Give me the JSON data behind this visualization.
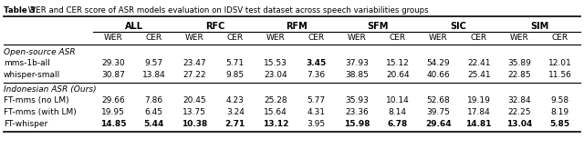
{
  "title_bold": "Table 3.",
  "title_normal": " WER and CER score of ASR models evaluation on IDSV test dataset across speech variabilities groups",
  "col_groups": [
    "ALL",
    "RFC",
    "RFM",
    "SFM",
    "SIC",
    "SIM"
  ],
  "section1_label": "Open-source ASR",
  "section2_label": "Indonesian ASR (Ours)",
  "rows": [
    {
      "model": "mms-1b-all",
      "values": [
        "29.30",
        "9.57",
        "23.47",
        "5.71",
        "15.53",
        "3.45",
        "37.93",
        "15.12",
        "54.29",
        "22.41",
        "35.89",
        "12.01"
      ],
      "bold": [
        false,
        false,
        false,
        false,
        false,
        true,
        false,
        false,
        false,
        false,
        false,
        false
      ]
    },
    {
      "model": "whisper-small",
      "values": [
        "30.87",
        "13.84",
        "27.22",
        "9.85",
        "23.04",
        "7.36",
        "38.85",
        "20.64",
        "40.66",
        "25.41",
        "22.85",
        "11.56"
      ],
      "bold": [
        false,
        false,
        false,
        false,
        false,
        false,
        false,
        false,
        false,
        false,
        false,
        false
      ]
    },
    {
      "model": "FT-mms (no LM)",
      "values": [
        "29.66",
        "7.86",
        "20.45",
        "4.23",
        "25.28",
        "5.77",
        "35.93",
        "10.14",
        "52.68",
        "19.19",
        "32.84",
        "9.58"
      ],
      "bold": [
        false,
        false,
        false,
        false,
        false,
        false,
        false,
        false,
        false,
        false,
        false,
        false
      ]
    },
    {
      "model": "FT-mms (with LM)",
      "values": [
        "19.95",
        "6.45",
        "13.75",
        "3.24",
        "15.64",
        "4.31",
        "23.36",
        "8.14",
        "39.75",
        "17.84",
        "22.25",
        "8.19"
      ],
      "bold": [
        false,
        false,
        false,
        false,
        false,
        false,
        false,
        false,
        false,
        false,
        false,
        false
      ]
    },
    {
      "model": "FT-whisper",
      "values": [
        "14.85",
        "5.44",
        "10.38",
        "2.71",
        "13.12",
        "3.95",
        "15.98",
        "6.78",
        "29.64",
        "14.81",
        "13.04",
        "5.85"
      ],
      "bold": [
        true,
        true,
        true,
        true,
        true,
        false,
        true,
        true,
        true,
        true,
        true,
        true
      ]
    }
  ],
  "background_color": "#ffffff",
  "text_color": "#000000",
  "line_color": "#000000"
}
